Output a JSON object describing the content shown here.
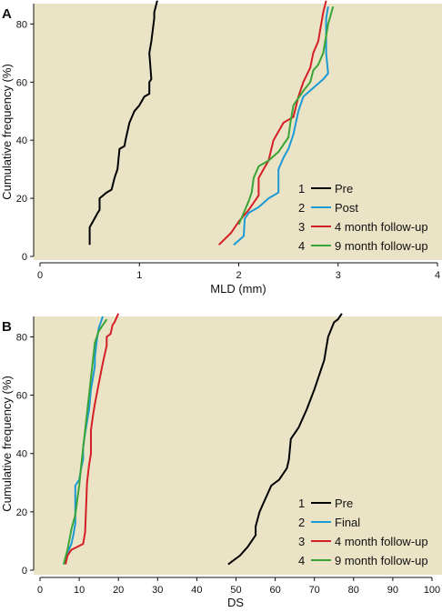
{
  "chart_data": [
    {
      "type": "line",
      "panel": "A",
      "xlabel": "MLD (mm)",
      "ylabel": "Cumulative frequency (%)",
      "xlim": [
        0,
        4
      ],
      "ylim": [
        0,
        87
      ],
      "xticks": [
        0,
        1,
        2,
        3,
        4
      ],
      "yticks": [
        0,
        20,
        40,
        60,
        80
      ],
      "grid": false,
      "legend_position": "bottom-right",
      "series": [
        {
          "number": "1",
          "name": "Pre",
          "color": "#000000",
          "x": [
            0.5,
            0.5,
            0.58,
            0.6,
            0.6,
            0.67,
            0.72,
            0.75,
            0.78,
            0.8,
            0.85,
            0.86,
            0.9,
            0.95,
            1.0,
            1.05,
            1.1,
            1.1,
            1.12,
            1.1,
            1.12,
            1.15,
            1.15,
            1.18
          ],
          "y": [
            4,
            10,
            15,
            16,
            20,
            22,
            23,
            27,
            30,
            37,
            38,
            40,
            46,
            50,
            52,
            55,
            56,
            60,
            61,
            70,
            74,
            82,
            84,
            88
          ]
        },
        {
          "number": "2",
          "name": "Post",
          "color": "#1b9ad6",
          "x": [
            1.95,
            2.05,
            2.06,
            2.1,
            2.2,
            2.3,
            2.4,
            2.4,
            2.45,
            2.5,
            2.55,
            2.6,
            2.65,
            2.75,
            2.85,
            2.9,
            2.88,
            2.88,
            2.9
          ],
          "y": [
            4,
            7,
            13,
            15,
            17,
            20,
            22,
            30,
            34,
            37,
            42,
            50,
            55,
            58,
            61,
            63,
            70,
            82,
            86
          ]
        },
        {
          "number": "3",
          "name": "4 month follow-up",
          "color": "#d51f26",
          "x": [
            1.8,
            1.92,
            2.0,
            2.1,
            2.2,
            2.2,
            2.25,
            2.3,
            2.35,
            2.45,
            2.5,
            2.55,
            2.6,
            2.65,
            2.72,
            2.75,
            2.8,
            2.85,
            2.88
          ],
          "y": [
            4,
            8,
            12,
            16,
            21,
            27,
            30,
            33,
            40,
            46,
            47,
            48,
            55,
            60,
            65,
            70,
            74,
            84,
            88
          ]
        },
        {
          "number": "4",
          "name": "9 month follow-up",
          "color": "#3aa537",
          "x": [
            2.0,
            2.05,
            2.1,
            2.13,
            2.15,
            2.2,
            2.3,
            2.4,
            2.5,
            2.52,
            2.55,
            2.65,
            2.72,
            2.75,
            2.8,
            2.85,
            2.9,
            2.95
          ],
          "y": [
            11,
            15,
            19,
            22,
            27,
            31,
            33,
            36,
            41,
            46,
            52,
            57,
            60,
            64,
            66,
            70,
            80,
            86
          ]
        }
      ]
    },
    {
      "type": "line",
      "panel": "B",
      "xlabel": "DS",
      "ylabel": "Cumulative frequency (%)",
      "xlim": [
        0,
        100
      ],
      "ylim": [
        0,
        87
      ],
      "xticks": [
        0,
        10,
        20,
        30,
        40,
        50,
        60,
        70,
        80,
        90,
        100
      ],
      "yticks": [
        0,
        20,
        40,
        60,
        80
      ],
      "grid": false,
      "legend_position": "bottom-right",
      "series": [
        {
          "number": "1",
          "name": "Pre",
          "color": "#000000",
          "x": [
            48,
            51,
            53,
            55,
            55,
            56,
            57,
            58,
            59,
            61,
            62,
            63,
            63.5,
            64,
            66,
            67,
            68,
            70,
            71,
            72,
            72.5,
            73,
            73.5,
            75,
            76,
            77
          ],
          "y": [
            2,
            5,
            8,
            12,
            15,
            20,
            23,
            26,
            29,
            31,
            33,
            35,
            38,
            45,
            49,
            52,
            55,
            62,
            66,
            70,
            72,
            76,
            80,
            85,
            86,
            88
          ]
        },
        {
          "number": "2",
          "name": "Final",
          "color": "#1b9ad6",
          "x": [
            6.5,
            7,
            8,
            8.5,
            9,
            9,
            10,
            10.5,
            11,
            11,
            11.5,
            12,
            12.5,
            13,
            13.5,
            14,
            14,
            14.5,
            15,
            16
          ],
          "y": [
            2,
            6,
            9,
            12,
            16,
            29,
            31,
            35,
            38,
            42,
            47,
            51,
            55,
            62,
            66,
            70,
            73,
            79,
            83,
            87
          ]
        },
        {
          "number": "3",
          "name": "4 month follow-up",
          "color": "#d51f26",
          "x": [
            6.5,
            7,
            8,
            11,
            11.5,
            12,
            12.5,
            13,
            13,
            13.5,
            14,
            15,
            16,
            17,
            17,
            18,
            18.5,
            19,
            20
          ],
          "y": [
            2,
            5,
            7,
            9,
            13,
            30,
            36,
            40,
            48,
            53,
            57,
            64,
            71,
            77,
            80,
            81,
            84,
            85,
            88
          ]
        },
        {
          "number": "4",
          "name": "9 month follow-up",
          "color": "#3aa537",
          "x": [
            6,
            7,
            8,
            9,
            9.5,
            10,
            10.5,
            11,
            11.5,
            12,
            12.5,
            13,
            13.5,
            14,
            15,
            16,
            17
          ],
          "y": [
            2,
            7,
            14,
            19,
            24,
            29,
            36,
            42,
            48,
            54,
            60,
            66,
            72,
            78,
            82,
            84,
            86
          ]
        }
      ]
    }
  ]
}
